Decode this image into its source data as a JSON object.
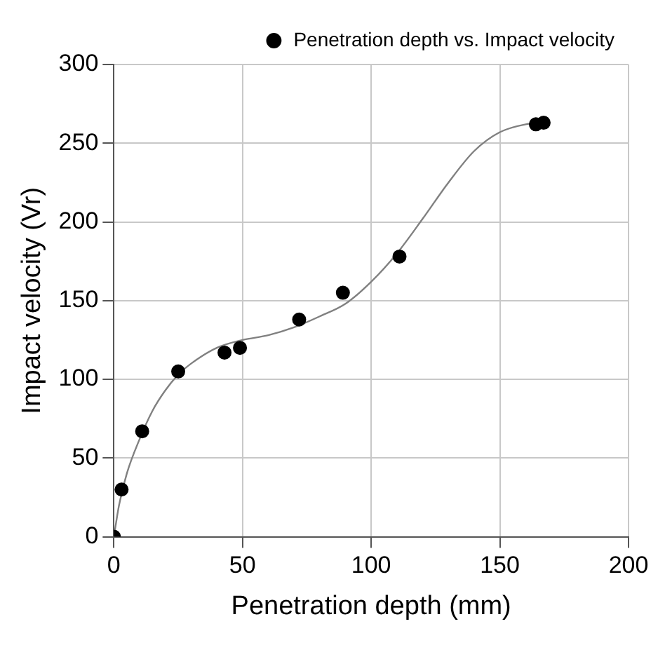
{
  "chart_data": {
    "type": "scatter",
    "xlabel": "Penetration depth (mm)",
    "ylabel": "Impact velocity (Vr)",
    "xlim": [
      0,
      200
    ],
    "xticks": [
      0,
      50,
      100,
      150,
      200
    ],
    "ylim": [
      0,
      300
    ],
    "yticks": [
      0,
      50,
      100,
      150,
      200,
      250,
      300
    ],
    "grid": true,
    "legend": "top right",
    "marker": "circle",
    "series": [
      {
        "name": "Penetration depth vs. Impact velocity",
        "type": "scatter",
        "color": "#000000",
        "x": [
          0,
          3,
          11,
          25,
          43,
          49,
          72,
          89,
          111,
          164,
          167
        ],
        "values": [
          0,
          30,
          67,
          105,
          117,
          120,
          138,
          155,
          178,
          262,
          263
        ]
      },
      {
        "type": "line",
        "color": "#808080",
        "marker": "none",
        "line_style": "solid",
        "x": [
          0,
          2,
          5,
          10,
          15,
          20,
          25,
          30,
          40,
          50,
          60,
          70,
          80,
          90,
          100,
          110,
          120,
          130,
          140,
          150,
          160,
          167
        ],
        "values": [
          0,
          20,
          40,
          62,
          80,
          93,
          103,
          110,
          120,
          125,
          128,
          133,
          140,
          148,
          162,
          180,
          202,
          225,
          245,
          257,
          262,
          263
        ]
      }
    ]
  }
}
